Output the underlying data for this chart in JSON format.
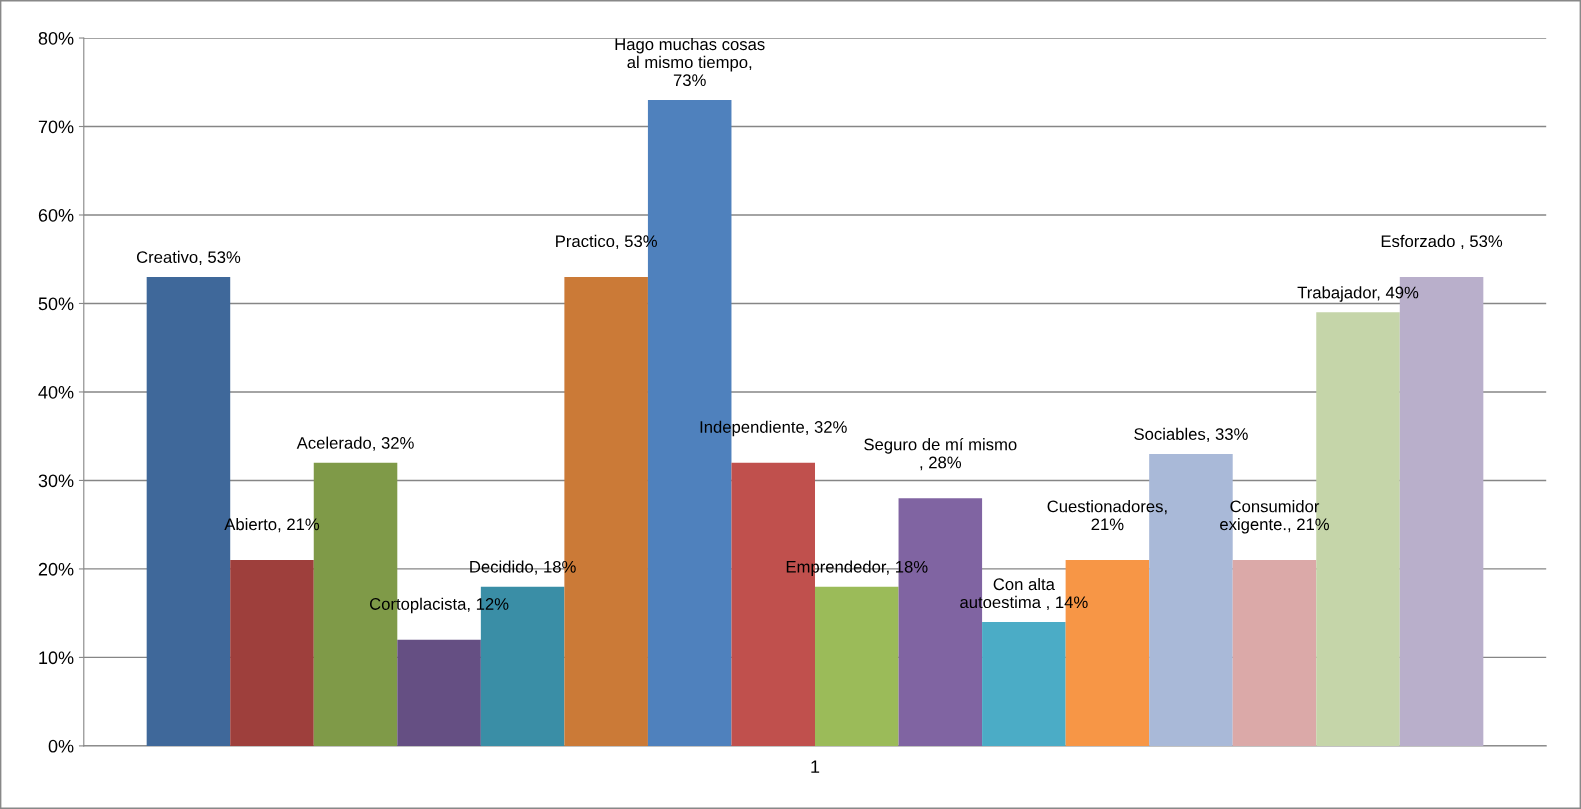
{
  "chart_data": {
    "type": "bar",
    "categories": [
      "1"
    ],
    "ylim": [
      0,
      80
    ],
    "yticks": [
      {
        "value": 0,
        "label": "0%"
      },
      {
        "value": 10,
        "label": "10%"
      },
      {
        "value": 20,
        "label": "20%"
      },
      {
        "value": 30,
        "label": "30%"
      },
      {
        "value": 40,
        "label": "40%"
      },
      {
        "value": 50,
        "label": "50%"
      },
      {
        "value": 60,
        "label": "60%"
      },
      {
        "value": 70,
        "label": "70%"
      },
      {
        "value": 80,
        "label": "80%"
      }
    ],
    "grid": "y",
    "legend": false,
    "series": [
      {
        "color": "#3f689a",
        "values": [
          53
        ],
        "value_labels": [
          "Creativo, 53%"
        ]
      },
      {
        "color": "#9e3f3c",
        "values": [
          21
        ],
        "value_labels": [
          "Abierto, 21%"
        ]
      },
      {
        "color": "#7f9a48",
        "values": [
          32
        ],
        "value_labels": [
          "Acelerado, 32%"
        ]
      },
      {
        "color": "#654f83",
        "values": [
          12
        ],
        "value_labels": [
          "Cortoplacista, 12%"
        ]
      },
      {
        "color": "#3a8ea6",
        "values": [
          18
        ],
        "value_labels": [
          "Decidido, 18%"
        ]
      },
      {
        "color": "#cb7a37",
        "values": [
          53
        ],
        "value_labels": [
          "Practico, 53%"
        ]
      },
      {
        "color": "#4f81bd",
        "values": [
          73
        ],
        "value_labels": [
          "Hago muchas cosas al mismo tiempo, 73%"
        ]
      },
      {
        "color": "#c0504d",
        "values": [
          32
        ],
        "value_labels": [
          "Independiente, 32%"
        ]
      },
      {
        "color": "#9bbb59",
        "values": [
          18
        ],
        "value_labels": [
          "Emprendedor, 18%"
        ]
      },
      {
        "color": "#8064a2",
        "values": [
          28
        ],
        "value_labels": [
          "Seguro de mí mismo , 28%"
        ]
      },
      {
        "color": "#4bacc6",
        "values": [
          14
        ],
        "value_labels": [
          "Con alta autoestima , 14%"
        ]
      },
      {
        "color": "#f79646",
        "values": [
          21
        ],
        "value_labels": [
          "Cuestionadores, 21%"
        ]
      },
      {
        "color": "#a9b9d8",
        "values": [
          33
        ],
        "value_labels": [
          "Sociables, 33%"
        ]
      },
      {
        "color": "#dba9a8",
        "values": [
          21
        ],
        "value_labels": [
          "Consumidor exigente., 21%"
        ]
      },
      {
        "color": "#c5d5a9",
        "values": [
          49
        ],
        "value_labels": [
          "Trabajador, 49%"
        ]
      },
      {
        "color": "#b9afcb",
        "values": [
          53
        ],
        "value_labels": [
          "Esforzado , 53%"
        ]
      }
    ]
  }
}
